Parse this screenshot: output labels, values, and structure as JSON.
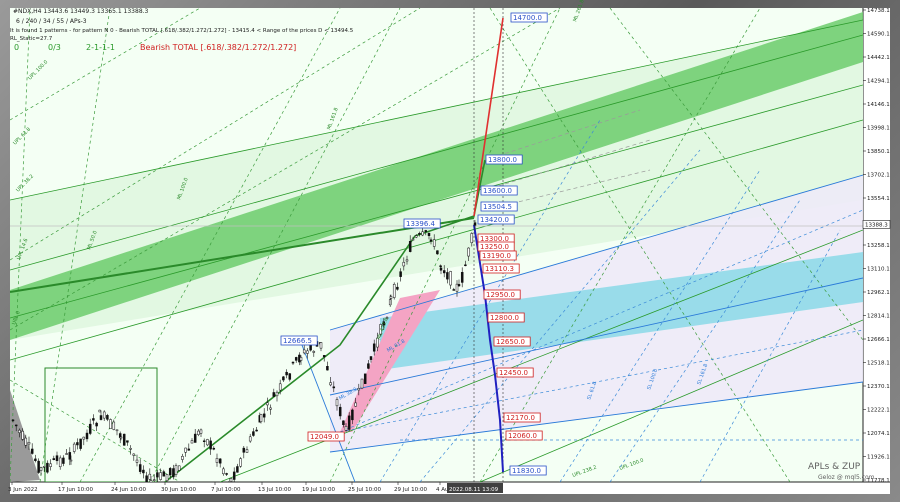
{
  "header": {
    "symbol_line": "#NDX,H4  13443.6 13449.3 13365.1 13388.3",
    "params_line": "6 / 240 / 34 / 55 / APs-3",
    "pattern_line": "It is found 1 patterns  -  for pattern N 0 - Bearish TOTAL [.618/.382/1.272/1.272] - 13415.4 < Range of the prices D < 13494.5",
    "rl_static": "RL_Static=27.7",
    "counter_a": "0",
    "counter_b": "0/3",
    "counter_c": "2-1-1-1",
    "bearish_label": "Bearish TOTAL [.618/.382/1.272/1.272]"
  },
  "watermark": {
    "line1": "APLs & ZUP",
    "line2": "Geloz @ mql5.com"
  },
  "price_axis": {
    "ticks": [
      "14738.1",
      "14590.1",
      "14442.1",
      "14294.1",
      "14146.1",
      "13998.1",
      "13850.1",
      "13702.1",
      "13554.1",
      "13258.1",
      "13110.1",
      "12962.1",
      "12814.1",
      "12666.1",
      "12518.1",
      "12370.1",
      "12222.1",
      "12074.1",
      "11926.1",
      "11778.1"
    ],
    "current": "13388.3"
  },
  "time_axis": {
    "ticks": [
      "3 Jun 2022",
      "17 Jun 10:00",
      "24 Jun 10:00",
      "30 Jun 10:00",
      "7 Jul 10:00",
      "13 Jul 10:00",
      "19 Jul 10:00",
      "25 Jul 10:00",
      "29 Jul 10:00",
      "4 Aug 10:00"
    ],
    "current": "2022.08.11 13:09"
  },
  "chart_data": {
    "type": "candlestick",
    "title": "#NDX,H4",
    "ylim": [
      11720,
      14760
    ],
    "reference_levels_blue": [
      14700.0,
      13800.0,
      13600.0,
      13504.5,
      13420.0,
      13396.4,
      12666.5,
      11830.0
    ],
    "reference_levels_red": [
      13300.0,
      13250.0,
      13190.0,
      13110.3,
      12950.0,
      12800.0,
      12650.0,
      12450.0,
      12170.0,
      12060.0,
      12049.0
    ],
    "ohlc_last": {
      "open": 13443.6,
      "high": 13449.3,
      "low": 13365.1,
      "close": 13388.3
    }
  },
  "channel_labels_green": [
    "UPL 100.0",
    "UPL 61.8",
    "UPL 38.2",
    "UPL 14.6",
    "UPL 0",
    "ML 50.0",
    "ML 100.0",
    "ML 161.8",
    "ML 261.8",
    "ML 423.6",
    "UPL 238.2",
    "UPL 100.0"
  ],
  "channel_labels_blue": [
    "ML 61.8",
    "ML 38.2",
    "SL 61.8",
    "SL 100.0",
    "SL 161.8"
  ]
}
